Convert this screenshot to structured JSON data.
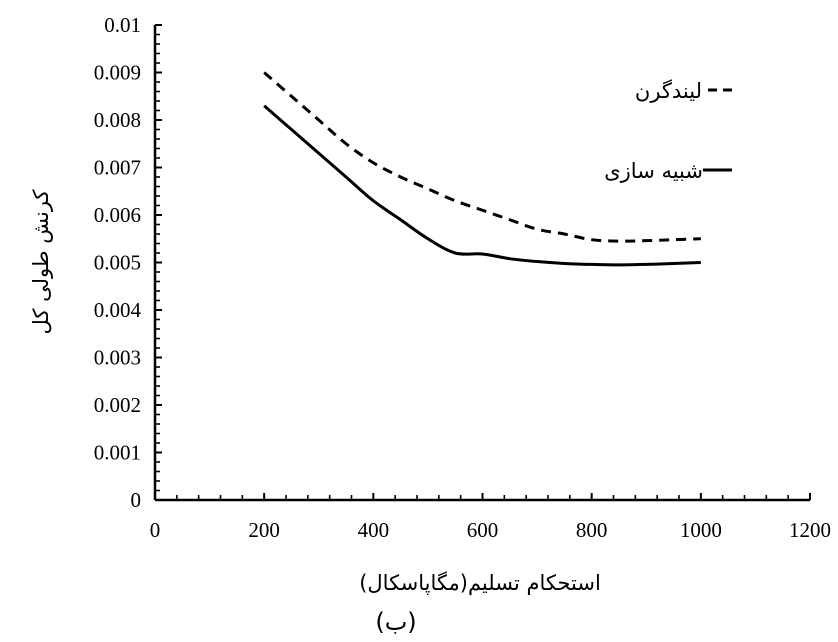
{
  "chart_data": {
    "type": "line",
    "title": "",
    "caption": "(ب)",
    "xlabel": "استحکام تسلیم(مگاپاسکال)",
    "ylabel": "کرنش طولی کل",
    "xlim": [
      0,
      1200
    ],
    "ylim": [
      0,
      0.01
    ],
    "xticks": [
      "0",
      "200",
      "400",
      "600",
      "800",
      "1000",
      "1200"
    ],
    "yticks": [
      "0",
      "0.001",
      "0.002",
      "0.003",
      "0.004",
      "0.005",
      "0.006",
      "0.007",
      "0.008",
      "0.009",
      "0.01"
    ],
    "grid": false,
    "legend_position": "top-right",
    "series": [
      {
        "name": "لیندگرن",
        "style": "dashed",
        "color": "#000000",
        "x": [
          200,
          250,
          300,
          350,
          400,
          450,
          500,
          550,
          600,
          650,
          700,
          750,
          800,
          850,
          900,
          950,
          1000
        ],
        "y": [
          0.009,
          0.0085,
          0.008,
          0.0075,
          0.0071,
          0.0068,
          0.00655,
          0.0063,
          0.0061,
          0.0059,
          0.0057,
          0.0056,
          0.00548,
          0.00545,
          0.00546,
          0.00548,
          0.0055
        ]
      },
      {
        "name": "شبیه سازی",
        "style": "solid",
        "color": "#000000",
        "x": [
          200,
          250,
          300,
          350,
          400,
          450,
          500,
          550,
          600,
          650,
          700,
          750,
          800,
          850,
          900,
          950,
          1000
        ],
        "y": [
          0.0083,
          0.0078,
          0.0073,
          0.0068,
          0.0063,
          0.0059,
          0.0055,
          0.0052,
          0.00518,
          0.00508,
          0.00502,
          0.00498,
          0.00496,
          0.00495,
          0.00496,
          0.00498,
          0.005
        ]
      }
    ]
  }
}
